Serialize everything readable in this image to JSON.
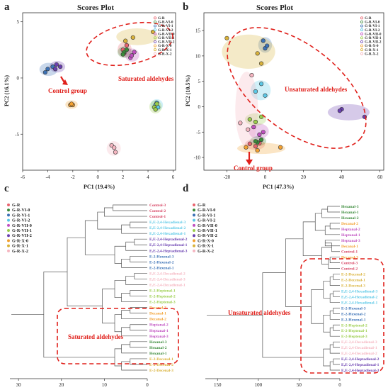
{
  "chart_data": [
    {
      "panel": "a",
      "type": "scatter",
      "title": "Scores Plot",
      "xlabel": "PC1 (19.4%)",
      "ylabel": "PC2 (16.1%)",
      "xlim": [
        -6,
        6.2
      ],
      "ylim": [
        -8.2,
        5.8
      ],
      "xticks": [
        -6,
        -4,
        -2,
        0,
        2,
        4,
        6
      ],
      "yticks": [
        -5,
        0,
        5
      ],
      "grid": false,
      "legend_position": "top-right",
      "series": [
        {
          "name": "G-R",
          "color": "#e8636e",
          "marker": "triangle",
          "points": [
            [
              2.0,
              2.5
            ],
            [
              2.3,
              2.9
            ],
            [
              2.1,
              2.2
            ]
          ]
        },
        {
          "name": "G-R-VI-0",
          "color": "#3a8a3a",
          "points": [
            [
              2.1,
              2.3
            ],
            [
              2.3,
              2.5
            ],
            [
              2.0,
              2.1
            ]
          ]
        },
        {
          "name": "G-R-VI-1",
          "color": "#3c72b6",
          "points": [
            [
              -4.0,
              0.8
            ],
            [
              -3.6,
              1.0
            ],
            [
              -4.2,
              0.5
            ]
          ]
        },
        {
          "name": "G-R-VI-2",
          "color": "#5bc8e6",
          "points": [
            [
              4.6,
              -2.4
            ],
            [
              4.8,
              -2.6
            ],
            [
              4.7,
              -2.2
            ]
          ]
        },
        {
          "name": "G-R-VII-0",
          "color": "#c050c0",
          "points": [
            [
              2.6,
              1.8
            ],
            [
              2.9,
              2.3
            ],
            [
              2.7,
              2.0
            ]
          ]
        },
        {
          "name": "G-R-VII-1",
          "color": "#9acd4a",
          "points": [
            [
              4.5,
              -2.6
            ],
            [
              4.7,
              -2.3
            ],
            [
              4.6,
              -2.8
            ]
          ]
        },
        {
          "name": "G-R-VII-2",
          "color": "#6a3fb0",
          "points": [
            [
              -3.3,
              1.2
            ],
            [
              -3.0,
              1.0
            ],
            [
              -3.4,
              0.8
            ]
          ]
        },
        {
          "name": "G-R-X-0",
          "color": "#f2a030",
          "points": [
            [
              -2.2,
              -2.4
            ],
            [
              -2.0,
              -2.4
            ],
            [
              -2.1,
              -2.3
            ]
          ]
        },
        {
          "name": "G-R-X-1",
          "color": "#d9b23a",
          "points": [
            [
              2.2,
              3.3
            ],
            [
              2.8,
              3.6
            ],
            [
              4.4,
              4.1
            ]
          ]
        },
        {
          "name": "G-R-X-2",
          "color": "#f5b5c0",
          "points": [
            [
              1.1,
              -6.0
            ],
            [
              1.4,
              -6.6
            ],
            [
              1.3,
              -6.2
            ]
          ]
        }
      ],
      "annotations": [
        "Saturated aldehydes",
        "Control group"
      ]
    },
    {
      "panel": "b",
      "type": "scatter",
      "title": "Scores Plot",
      "xlabel": "PC1 (47.3%)",
      "ylabel": "PC2 (10.5%)",
      "xlim": [
        -32,
        62
      ],
      "ylim": [
        -12.5,
        18.5
      ],
      "xticks": [
        -20,
        0,
        20,
        40,
        60
      ],
      "yticks": [
        -10,
        -5,
        0,
        5,
        10,
        15
      ],
      "grid": false,
      "legend_position": "top-right",
      "series": [
        {
          "name": "G-R",
          "color": "#e8636e",
          "marker": "triangle",
          "points": [
            [
              -8,
              -7.3
            ],
            [
              -5,
              -7.8
            ],
            [
              -3,
              -7.2
            ]
          ]
        },
        {
          "name": "G-R-VI-0",
          "color": "#3a8a3a",
          "points": [
            [
              -4,
              -7.0
            ],
            [
              -2,
              -6.5
            ],
            [
              -5,
              -6.8
            ]
          ]
        },
        {
          "name": "G-R-VI-1",
          "color": "#3c72b6",
          "points": [
            [
              -1,
              13.0
            ],
            [
              0,
              11.5
            ],
            [
              1,
              12.0
            ]
          ]
        },
        {
          "name": "G-R-VI-2",
          "color": "#5bc8e6",
          "points": [
            [
              -5,
              3.0
            ],
            [
              -2,
              4.5
            ],
            [
              0,
              2.2
            ]
          ]
        },
        {
          "name": "G-R-VII-0",
          "color": "#c050c0",
          "points": [
            [
              -6,
              -4.0
            ],
            [
              -3,
              -5.5
            ],
            [
              -1,
              -5.0
            ]
          ]
        },
        {
          "name": "G-R-VII-1",
          "color": "#9acd4a",
          "points": [
            [
              -8,
              -2.5
            ],
            [
              -5,
              -3.0
            ],
            [
              -2,
              -2.0
            ]
          ]
        },
        {
          "name": "G-R-VII-2",
          "color": "#6a3fb0",
          "points": [
            [
              40,
              -0.5
            ],
            [
              52,
              -2.0
            ],
            [
              39,
              -0.8
            ]
          ]
        },
        {
          "name": "G-R-X-0",
          "color": "#f2a030",
          "points": [
            [
              -10,
              -8.0
            ],
            [
              -4,
              -8.6
            ],
            [
              8,
              -8.0
            ]
          ]
        },
        {
          "name": "G-R-X-1",
          "color": "#d9b23a",
          "points": [
            [
              -20,
              13.5
            ],
            [
              -4,
              10.5
            ],
            [
              -2,
              8.5
            ]
          ]
        },
        {
          "name": "G-R-X-2",
          "color": "#f5b5c0",
          "points": [
            [
              -7,
              6.2
            ],
            [
              -13,
              -3.2
            ],
            [
              -9,
              -4.5
            ]
          ]
        }
      ],
      "annotations": [
        "Unsaturated aldehydes",
        "Control group"
      ]
    },
    {
      "panel": "c",
      "type": "dendrogram",
      "xticks": [
        30,
        20,
        10,
        0
      ],
      "xlim": [
        32,
        0
      ],
      "legend_position": "top-left",
      "leaves": [
        {
          "label": "Control-3",
          "color": "#d64060",
          "h": 8
        },
        {
          "label": "Control-2",
          "color": "#d64060",
          "h": 8
        },
        {
          "label": "Control-1",
          "color": "#d64060",
          "h": 10
        },
        {
          "label": "E,E-2,4-Hexadienal-3",
          "color": "#5bc8e6",
          "h": 4
        },
        {
          "label": "E,E-2,4-Hexadienal-2",
          "color": "#5bc8e6",
          "h": 4
        },
        {
          "label": "E,E-2,4-Hexadienal-1",
          "color": "#5bc8e6",
          "h": 6
        },
        {
          "label": "E,E-2,4-Heptadienal-2",
          "color": "#6a3fb0",
          "h": 3
        },
        {
          "label": "E,E-2,4-Heptadienal-1",
          "color": "#6a3fb0",
          "h": 3
        },
        {
          "label": "E,E-2,4-Heptadienal-3",
          "color": "#6a3fb0",
          "h": 5
        },
        {
          "label": "E-2-Hexenal-3",
          "color": "#3c72b6",
          "h": 4
        },
        {
          "label": "E-2-Hexenal-2",
          "color": "#3c72b6",
          "h": 4
        },
        {
          "label": "E-2-Hexenal-1",
          "color": "#3c72b6",
          "h": 6
        },
        {
          "label": "E,E-2,4-Decadienal-2",
          "color": "#f5b5c0",
          "h": 3
        },
        {
          "label": "E,E-2,4-Decadienal-3",
          "color": "#f5b5c0",
          "h": 3
        },
        {
          "label": "E,E-2,4-Decadienal-1",
          "color": "#f5b5c0",
          "h": 5
        },
        {
          "label": "E-2-Heptenal-1",
          "color": "#9acd4a",
          "h": 4
        },
        {
          "label": "E-2-Heptenal-2",
          "color": "#9acd4a",
          "h": 4
        },
        {
          "label": "E-2-Heptenal-3",
          "color": "#9acd4a",
          "h": 6
        },
        {
          "label": "Decanal-3",
          "color": "#f2a030",
          "h": 4
        },
        {
          "label": "Decanal-1",
          "color": "#f2a030",
          "h": 4
        },
        {
          "label": "Decanal-2",
          "color": "#f2a030",
          "h": 6
        },
        {
          "label": "Heptanal-2",
          "color": "#c050c0",
          "h": 4
        },
        {
          "label": "Heptanal-1",
          "color": "#c050c0",
          "h": 4
        },
        {
          "label": "Heptanal-3",
          "color": "#c050c0",
          "h": 6
        },
        {
          "label": "Hexanal-3",
          "color": "#3a8a3a",
          "h": 4
        },
        {
          "label": "Hexanal-2",
          "color": "#3a8a3a",
          "h": 4
        },
        {
          "label": "Hexanal-1",
          "color": "#3a8a3a",
          "h": 6
        },
        {
          "label": "E-2-Decenal-1",
          "color": "#d9b23a",
          "h": 4
        },
        {
          "label": "E-2-Decenal-2",
          "color": "#d9b23a",
          "h": 4
        },
        {
          "label": "E-2-Decenal-3",
          "color": "#d9b23a",
          "h": 6
        }
      ],
      "annotations": [
        "Saturated aldehydes"
      ]
    },
    {
      "panel": "d",
      "type": "dendrogram",
      "xticks": [
        150,
        100,
        50,
        0
      ],
      "xlim": [
        165,
        0
      ],
      "legend_position": "top-left",
      "leaves": [
        {
          "label": "Hexanal-3",
          "color": "#3a8a3a",
          "h": 15
        },
        {
          "label": "Hexanal-1",
          "color": "#3a8a3a",
          "h": 15
        },
        {
          "label": "Hexanal-2",
          "color": "#3a8a3a",
          "h": 22
        },
        {
          "label": "Decanal-2",
          "color": "#f2a030",
          "h": 12
        },
        {
          "label": "Heptanal-2",
          "color": "#c050c0",
          "h": 12
        },
        {
          "label": "Heptanal-1",
          "color": "#c050c0",
          "h": 18
        },
        {
          "label": "Heptanal-3",
          "color": "#c050c0",
          "h": 18
        },
        {
          "label": "Decanal-1",
          "color": "#f2a030",
          "h": 10
        },
        {
          "label": "Control-1",
          "color": "#d64060",
          "h": 10
        },
        {
          "label": "Decanal-3",
          "color": "#f2a030",
          "h": 12
        },
        {
          "label": "Control-3",
          "color": "#d64060",
          "h": 12
        },
        {
          "label": "Control-2",
          "color": "#d64060",
          "h": 14
        },
        {
          "label": "E-2-Decenal-2",
          "color": "#d9b23a",
          "h": 8
        },
        {
          "label": "E-2-Decenal-1",
          "color": "#d9b23a",
          "h": 8
        },
        {
          "label": "E-2-Decenal-3",
          "color": "#d9b23a",
          "h": 12
        },
        {
          "label": "E,E-2,4-Hexadienal-3",
          "color": "#5bc8e6",
          "h": 8
        },
        {
          "label": "E,E-2,4-Hexadienal-2",
          "color": "#5bc8e6",
          "h": 8
        },
        {
          "label": "E,E-2,4-Hexadienal-1",
          "color": "#5bc8e6",
          "h": 12
        },
        {
          "label": "E-2-Hexenal-3",
          "color": "#3c72b6",
          "h": 8
        },
        {
          "label": "E-2-Hexenal-2",
          "color": "#3c72b6",
          "h": 8
        },
        {
          "label": "E-2-Hexenal-1",
          "color": "#3c72b6",
          "h": 12
        },
        {
          "label": "E-2-Heptenal-2",
          "color": "#9acd4a",
          "h": 8
        },
        {
          "label": "E-2-Heptenal-1",
          "color": "#9acd4a",
          "h": 8
        },
        {
          "label": "E-2-Heptenal-3",
          "color": "#9acd4a",
          "h": 12
        },
        {
          "label": "E,E-2,4-Decadienal-3",
          "color": "#f5b5c0",
          "h": 8
        },
        {
          "label": "E,E-2,4-Decadienal-1",
          "color": "#f5b5c0",
          "h": 8
        },
        {
          "label": "E,E-2,4-Decadienal-2",
          "color": "#f5b5c0",
          "h": 12
        },
        {
          "label": "E,E-2,4-Heptadienal-2",
          "color": "#6a3fb0",
          "h": 8
        },
        {
          "label": "E,E-2,4-Heptadienal-1",
          "color": "#6a3fb0",
          "h": 8
        },
        {
          "label": "E,E-2,4-Heptadienal-3",
          "color": "#6a3fb0",
          "h": 12
        }
      ],
      "annotations": [
        "Unsaturated aldehydes"
      ]
    }
  ],
  "panel_letters": [
    "a",
    "b",
    "c",
    "d"
  ],
  "legend_items": [
    {
      "name": "G-R",
      "color": "#e8636e"
    },
    {
      "name": "G-R-VI-0",
      "color": "#3a8a3a"
    },
    {
      "name": "G-R-VI-1",
      "color": "#3c72b6"
    },
    {
      "name": "G-R-VI-2",
      "color": "#5bc8e6"
    },
    {
      "name": "G-R-VII-0",
      "color": "#c050c0"
    },
    {
      "name": "G-R-VII-1",
      "color": "#9acd4a"
    },
    {
      "name": "G-R-VII-2",
      "color": "#6a3fb0"
    },
    {
      "name": "G-R-X-0",
      "color": "#f2a030"
    },
    {
      "name": "G-R-X-1",
      "color": "#d9b23a"
    },
    {
      "name": "G-R-X-2",
      "color": "#f5b5c0"
    }
  ],
  "colors": {
    "annotation_red": "#e0201b",
    "axis": "#333333"
  }
}
